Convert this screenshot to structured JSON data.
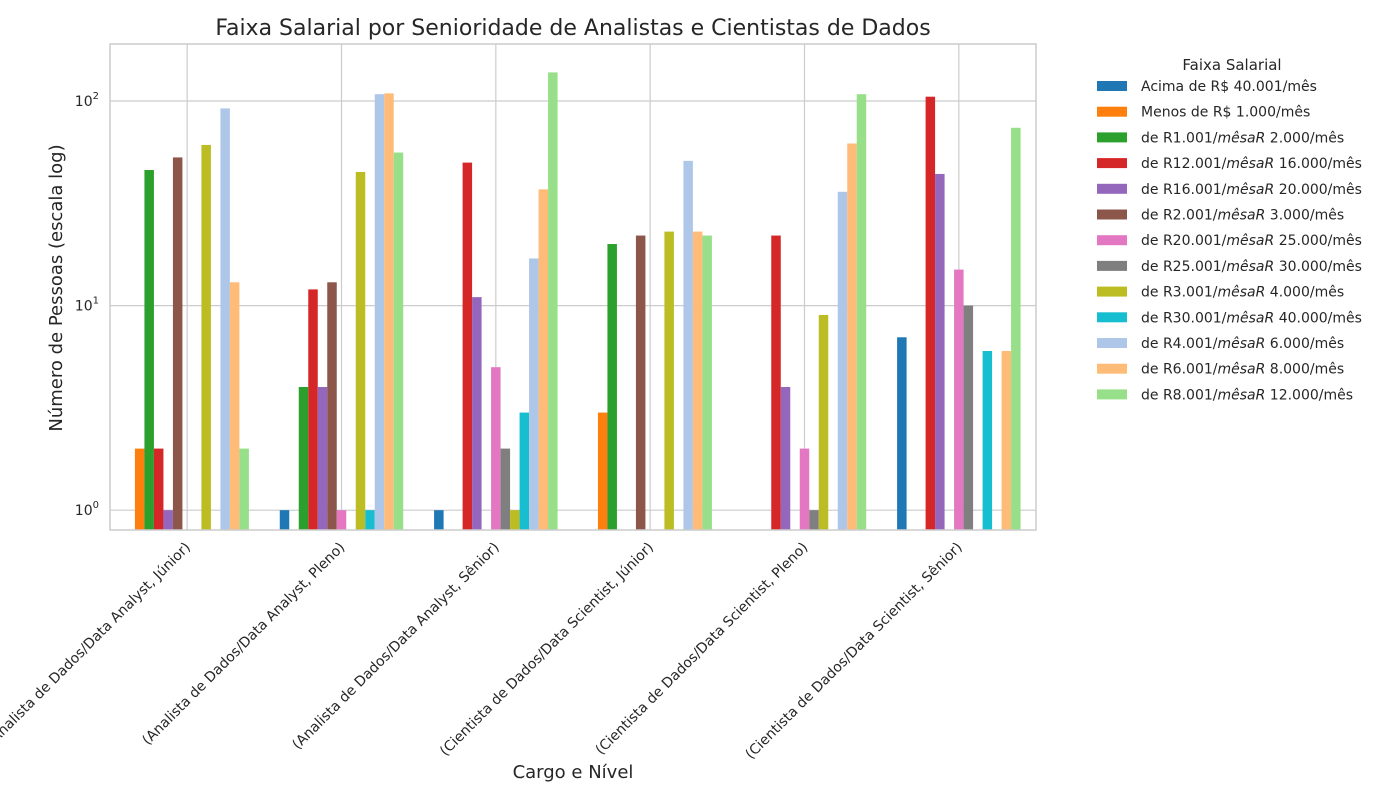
{
  "chart_data": {
    "type": "bar",
    "title": "Faixa Salarial por Senioridade de Analistas e Cientistas de Dados",
    "xlabel": "Cargo e Nível",
    "ylabel": "Número de Pessoas (escala log)",
    "yscale": "log",
    "ylim": [
      0.8,
      190
    ],
    "y_ticks": [
      {
        "value": 1,
        "base": "10",
        "exp": "0"
      },
      {
        "value": 10,
        "base": "10",
        "exp": "1"
      },
      {
        "value": 100,
        "base": "10",
        "exp": "2"
      }
    ],
    "grid": true,
    "legend": {
      "title": "Faixa Salarial",
      "placement": "outside-right"
    },
    "categories": [
      "(Analista de Dados/Data Analyst, Júnior)",
      "(Analista de Dados/Data Analyst, Pleno)",
      "(Analista de Dados/Data Analyst, Sênior)",
      "(Cientista de Dados/Data Scientist, Júnior)",
      "(Cientista de Dados/Data Scientist, Pleno)",
      "(Cientista de Dados/Data Scientist, Sênior)"
    ],
    "series": [
      {
        "name": "Acima de R$ 40.001/mês",
        "label_parts": [
          "Acima de R$ 40.001/mês"
        ],
        "color": "#1f77b4",
        "values": [
          0,
          1,
          1,
          0,
          0,
          7
        ]
      },
      {
        "name": "Menos de R$ 1.000/mês",
        "label_parts": [
          "Menos de R$ 1.000/mês"
        ],
        "color": "#ff7f0e",
        "values": [
          2,
          0,
          0,
          3,
          0,
          0
        ]
      },
      {
        "name": "de R$ 1.001/mês a R$ 2.000/mês",
        "label_parts": [
          "de R1.001/",
          "mêsaR",
          " 2.000/mês"
        ],
        "color": "#2ca02c",
        "values": [
          46,
          4,
          0,
          20,
          0,
          0
        ]
      },
      {
        "name": "de R$ 12.001/mês a R$ 16.000/mês",
        "label_parts": [
          "de R12.001/",
          "mêsaR",
          " 16.000/mês"
        ],
        "color": "#d62728",
        "values": [
          2,
          12,
          50,
          0,
          22,
          105
        ]
      },
      {
        "name": "de R$ 16.001/mês a R$ 20.000/mês",
        "label_parts": [
          "de R16.001/",
          "mêsaR",
          " 20.000/mês"
        ],
        "color": "#9467bd",
        "values": [
          1,
          4,
          11,
          0,
          4,
          44
        ]
      },
      {
        "name": "de R$ 2.001/mês a R$ 3.000/mês",
        "label_parts": [
          "de R2.001/",
          "mêsaR",
          " 3.000/mês"
        ],
        "color": "#8c564b",
        "values": [
          53,
          13,
          0,
          22,
          0,
          0
        ]
      },
      {
        "name": "de R$ 20.001/mês a R$ 25.000/mês",
        "label_parts": [
          "de R20.001/",
          "mêsaR",
          " 25.000/mês"
        ],
        "color": "#e377c2",
        "values": [
          0,
          1,
          5,
          0,
          2,
          15
        ]
      },
      {
        "name": "de R$ 25.001/mês a R$ 30.000/mês",
        "label_parts": [
          "de R25.001/",
          "mêsaR",
          " 30.000/mês"
        ],
        "color": "#7f7f7f",
        "values": [
          0,
          0,
          2,
          0,
          1,
          10
        ]
      },
      {
        "name": "de R$ 3.001/mês a R$ 4.000/mês",
        "label_parts": [
          "de R3.001/",
          "mêsaR",
          " 4.000/mês"
        ],
        "color": "#bcbd22",
        "values": [
          61,
          45,
          1,
          23,
          9,
          0
        ]
      },
      {
        "name": "de R$ 30.001/mês a R$ 40.000/mês",
        "label_parts": [
          "de R30.001/",
          "mêsaR",
          " 40.000/mês"
        ],
        "color": "#17becf",
        "values": [
          0,
          1,
          3,
          0,
          0,
          6
        ]
      },
      {
        "name": "de R$ 4.001/mês a R$ 6.000/mês",
        "label_parts": [
          "de R4.001/",
          "mêsaR",
          " 6.000/mês"
        ],
        "color": "#aec7e8",
        "values": [
          92,
          108,
          17,
          51,
          36,
          0
        ]
      },
      {
        "name": "de R$ 6.001/mês a R$ 8.000/mês",
        "label_parts": [
          "de R6.001/",
          "mêsaR",
          " 8.000/mês"
        ],
        "color": "#ffbb78",
        "values": [
          13,
          109,
          37,
          23,
          62,
          6
        ]
      },
      {
        "name": "de R$ 8.001/mês a R$ 12.000/mês",
        "label_parts": [
          "de R8.001/",
          "mêsaR",
          " 12.000/mês"
        ],
        "color": "#98df8a",
        "values": [
          2,
          56,
          138,
          22,
          108,
          74
        ]
      }
    ]
  }
}
